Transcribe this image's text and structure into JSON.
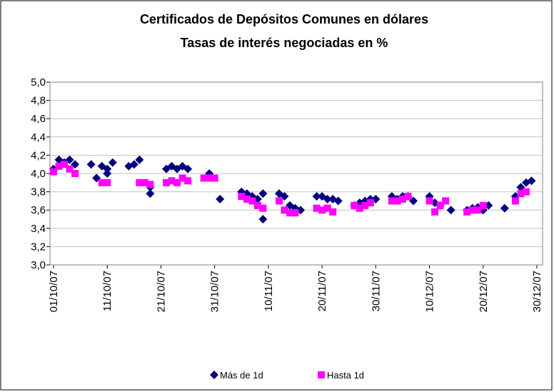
{
  "chart_data": {
    "type": "scatter",
    "title": "Certificados de Depósitos Comunes en dólares",
    "subtitle": "Tasas de interés negociadas en %",
    "xlim": [
      "01/10/07",
      "30/12/07"
    ],
    "xticks": [
      "01/10/07",
      "11/10/07",
      "21/10/07",
      "31/10/07",
      "10/11/07",
      "20/11/07",
      "30/11/07",
      "10/12/07",
      "20/12/07",
      "30/12/07"
    ],
    "ylim": [
      3,
      5
    ],
    "yticks": [
      {
        "value": 3,
        "label": "3,0"
      },
      {
        "value": 3.2,
        "label": "3,2"
      },
      {
        "value": 3.4,
        "label": "3,4"
      },
      {
        "value": 3.6,
        "label": "3,6"
      },
      {
        "value": 3.8,
        "label": "3,8"
      },
      {
        "value": 4,
        "label": "4,0"
      },
      {
        "value": 4.2,
        "label": "4,2"
      },
      {
        "value": 4.4,
        "label": "4,4"
      },
      {
        "value": 4.6,
        "label": "4,6"
      },
      {
        "value": 4.8,
        "label": "4,8"
      },
      {
        "value": 5,
        "label": "5,0"
      }
    ],
    "grid": true,
    "legend": "bottom",
    "series": [
      {
        "name": "Más de 1d",
        "color": "#000080",
        "marker": "diamond",
        "x": [
          "01/10/07",
          "02/10/07",
          "03/10/07",
          "04/10/07",
          "05/10/07",
          "08/10/07",
          "09/10/07",
          "10/10/07",
          "11/10/07",
          "11/10/07",
          "12/10/07",
          "15/10/07",
          "16/10/07",
          "17/10/07",
          "19/10/07",
          "19/10/07",
          "22/10/07",
          "23/10/07",
          "24/10/07",
          "25/10/07",
          "26/10/07",
          "30/10/07",
          "01/11/07",
          "05/11/07",
          "06/11/07",
          "07/11/07",
          "08/11/07",
          "09/11/07",
          "09/11/07",
          "12/11/07",
          "13/11/07",
          "14/11/07",
          "15/11/07",
          "16/11/07",
          "19/11/07",
          "20/11/07",
          "21/11/07",
          "22/11/07",
          "23/11/07",
          "26/11/07",
          "27/11/07",
          "28/11/07",
          "29/11/07",
          "30/11/07",
          "03/12/07",
          "04/12/07",
          "05/12/07",
          "06/12/07",
          "07/12/07",
          "10/12/07",
          "11/12/07",
          "12/12/07",
          "14/12/07",
          "17/12/07",
          "18/12/07",
          "19/12/07",
          "20/12/07",
          "21/12/07",
          "24/12/07",
          "26/12/07",
          "27/12/07",
          "28/12/07",
          "29/12/07"
        ],
        "values": [
          4.05,
          4.15,
          4.12,
          4.15,
          4.1,
          4.1,
          3.95,
          4.08,
          4.0,
          4.05,
          4.12,
          4.08,
          4.1,
          4.15,
          3.78,
          3.85,
          4.05,
          4.08,
          4.05,
          4.08,
          4.05,
          4.0,
          3.72,
          3.8,
          3.78,
          3.75,
          3.72,
          3.78,
          3.5,
          3.78,
          3.75,
          3.65,
          3.62,
          3.6,
          3.75,
          3.75,
          3.72,
          3.72,
          3.7,
          3.65,
          3.68,
          3.7,
          3.72,
          3.72,
          3.75,
          3.72,
          3.75,
          3.75,
          3.7,
          3.75,
          3.68,
          3.65,
          3.6,
          3.6,
          3.62,
          3.63,
          3.6,
          3.65,
          3.62,
          3.75,
          3.85,
          3.9,
          3.92
        ]
      },
      {
        "name": "Hasta 1d",
        "color": "#ff00ff",
        "marker": "square",
        "x": [
          "01/10/07",
          "02/10/07",
          "03/10/07",
          "04/10/07",
          "05/10/07",
          "10/10/07",
          "11/10/07",
          "17/10/07",
          "18/10/07",
          "19/10/07",
          "22/10/07",
          "23/10/07",
          "24/10/07",
          "25/10/07",
          "26/10/07",
          "29/10/07",
          "30/10/07",
          "31/10/07",
          "05/11/07",
          "06/11/07",
          "07/11/07",
          "08/11/07",
          "09/11/07",
          "12/11/07",
          "13/11/07",
          "14/11/07",
          "15/11/07",
          "19/11/07",
          "20/11/07",
          "21/11/07",
          "22/11/07",
          "26/11/07",
          "27/11/07",
          "28/11/07",
          "29/11/07",
          "03/12/07",
          "04/12/07",
          "05/12/07",
          "06/12/07",
          "10/12/07",
          "11/12/07",
          "12/12/07",
          "13/12/07",
          "17/12/07",
          "18/12/07",
          "19/12/07",
          "20/12/07",
          "26/12/07",
          "27/12/07",
          "28/12/07"
        ],
        "values": [
          4.02,
          4.08,
          4.1,
          4.05,
          4.0,
          3.9,
          3.9,
          3.9,
          3.9,
          3.88,
          3.9,
          3.92,
          3.9,
          3.95,
          3.92,
          3.95,
          3.95,
          3.95,
          3.75,
          3.72,
          3.7,
          3.65,
          3.62,
          3.7,
          3.6,
          3.57,
          3.57,
          3.62,
          3.6,
          3.62,
          3.58,
          3.65,
          3.62,
          3.65,
          3.68,
          3.7,
          3.7,
          3.72,
          3.75,
          3.7,
          3.58,
          3.65,
          3.7,
          3.58,
          3.6,
          3.6,
          3.65,
          3.7,
          3.78,
          3.8
        ]
      }
    ]
  }
}
